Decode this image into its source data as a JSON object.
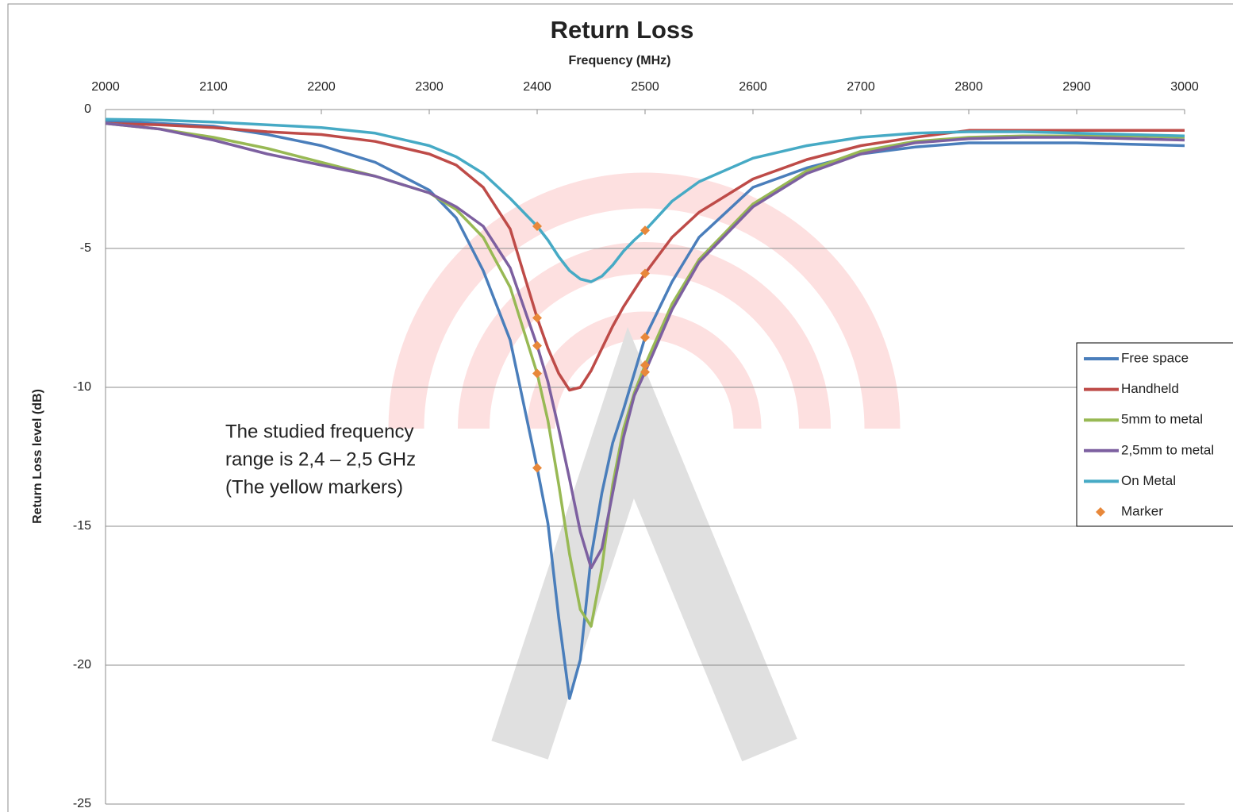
{
  "chart_data": {
    "type": "line",
    "title": "Return Loss",
    "x_label": "Frequency (MHz)",
    "y_label": "Return Loss level (dB)",
    "x": [
      2000,
      2050,
      2100,
      2150,
      2200,
      2250,
      2300,
      2325,
      2350,
      2375,
      2400,
      2410,
      2420,
      2430,
      2440,
      2450,
      2460,
      2470,
      2480,
      2490,
      2500,
      2525,
      2550,
      2600,
      2650,
      2700,
      2750,
      2800,
      2850,
      2900,
      2950,
      3000
    ],
    "series": [
      {
        "name": "Free space",
        "color": "#4a7ebb",
        "values": [
          -0.4,
          -0.5,
          -0.6,
          -0.9,
          -1.3,
          -1.9,
          -2.9,
          -3.9,
          -5.8,
          -8.3,
          -12.9,
          -14.9,
          -18.3,
          -21.2,
          -19.8,
          -16.1,
          -13.8,
          -12.0,
          -10.8,
          -9.5,
          -8.2,
          -6.2,
          -4.6,
          -2.8,
          -2.1,
          -1.6,
          -1.35,
          -1.2,
          -1.2,
          -1.2,
          -1.25,
          -1.3
        ]
      },
      {
        "name": "Handheld",
        "color": "#be4b48",
        "values": [
          -0.5,
          -0.55,
          -0.65,
          -0.8,
          -0.9,
          -1.15,
          -1.6,
          -2.0,
          -2.8,
          -4.3,
          -7.5,
          -8.6,
          -9.5,
          -10.1,
          -10.0,
          -9.4,
          -8.6,
          -7.8,
          -7.1,
          -6.5,
          -5.9,
          -4.6,
          -3.7,
          -2.5,
          -1.8,
          -1.3,
          -1.0,
          -0.75,
          -0.75,
          -0.75,
          -0.75,
          -0.75
        ]
      },
      {
        "name": "5mm to metal",
        "color": "#98b954",
        "values": [
          -0.5,
          -0.7,
          -1.0,
          -1.4,
          -1.9,
          -2.4,
          -3.0,
          -3.6,
          -4.6,
          -6.4,
          -9.5,
          -11.2,
          -13.5,
          -16.0,
          -18.0,
          -18.6,
          -16.5,
          -13.5,
          -11.5,
          -10.2,
          -9.2,
          -7.0,
          -5.4,
          -3.4,
          -2.2,
          -1.5,
          -1.15,
          -1.0,
          -0.95,
          -0.95,
          -0.95,
          -1.0
        ]
      },
      {
        "name": "2,5mm to metal",
        "color": "#7d60a0",
        "values": [
          -0.5,
          -0.7,
          -1.1,
          -1.6,
          -2.0,
          -2.4,
          -3.0,
          -3.5,
          -4.2,
          -5.7,
          -8.5,
          -9.8,
          -11.5,
          -13.3,
          -15.2,
          -16.5,
          -15.8,
          -13.8,
          -11.8,
          -10.3,
          -9.45,
          -7.2,
          -5.5,
          -3.5,
          -2.3,
          -1.6,
          -1.2,
          -1.05,
          -1.0,
          -1.0,
          -1.05,
          -1.1
        ]
      },
      {
        "name": "On Metal",
        "color": "#46aac5",
        "values": [
          -0.35,
          -0.38,
          -0.45,
          -0.55,
          -0.65,
          -0.85,
          -1.3,
          -1.7,
          -2.3,
          -3.2,
          -4.2,
          -4.7,
          -5.3,
          -5.8,
          -6.1,
          -6.2,
          -6.0,
          -5.6,
          -5.1,
          -4.7,
          -4.35,
          -3.3,
          -2.6,
          -1.75,
          -1.3,
          -1.0,
          -0.85,
          -0.8,
          -0.8,
          -0.85,
          -0.9,
          -0.95
        ]
      },
      {
        "name": "Marker",
        "type": "scatter",
        "color": "#e8883a",
        "x": [
          2400,
          2400,
          2400,
          2400,
          2400,
          2500,
          2500,
          2500,
          2500,
          2500
        ],
        "values": [
          -12.9,
          -7.5,
          -9.5,
          -8.5,
          -4.2,
          -8.2,
          -5.9,
          -9.2,
          -9.45,
          -4.35
        ]
      }
    ],
    "xlim": [
      2000,
      3000
    ],
    "xticks": [
      2000,
      2100,
      2200,
      2300,
      2400,
      2500,
      2600,
      2700,
      2800,
      2900,
      3000
    ],
    "ylim": [
      -25,
      0
    ],
    "yticks": [
      0,
      -5,
      -10,
      -15,
      -20,
      -25
    ],
    "grid": true,
    "annotation": [
      "The studied frequency",
      "range is 2,4 – 2,5 GHz",
      "(The yellow markers)"
    ]
  }
}
